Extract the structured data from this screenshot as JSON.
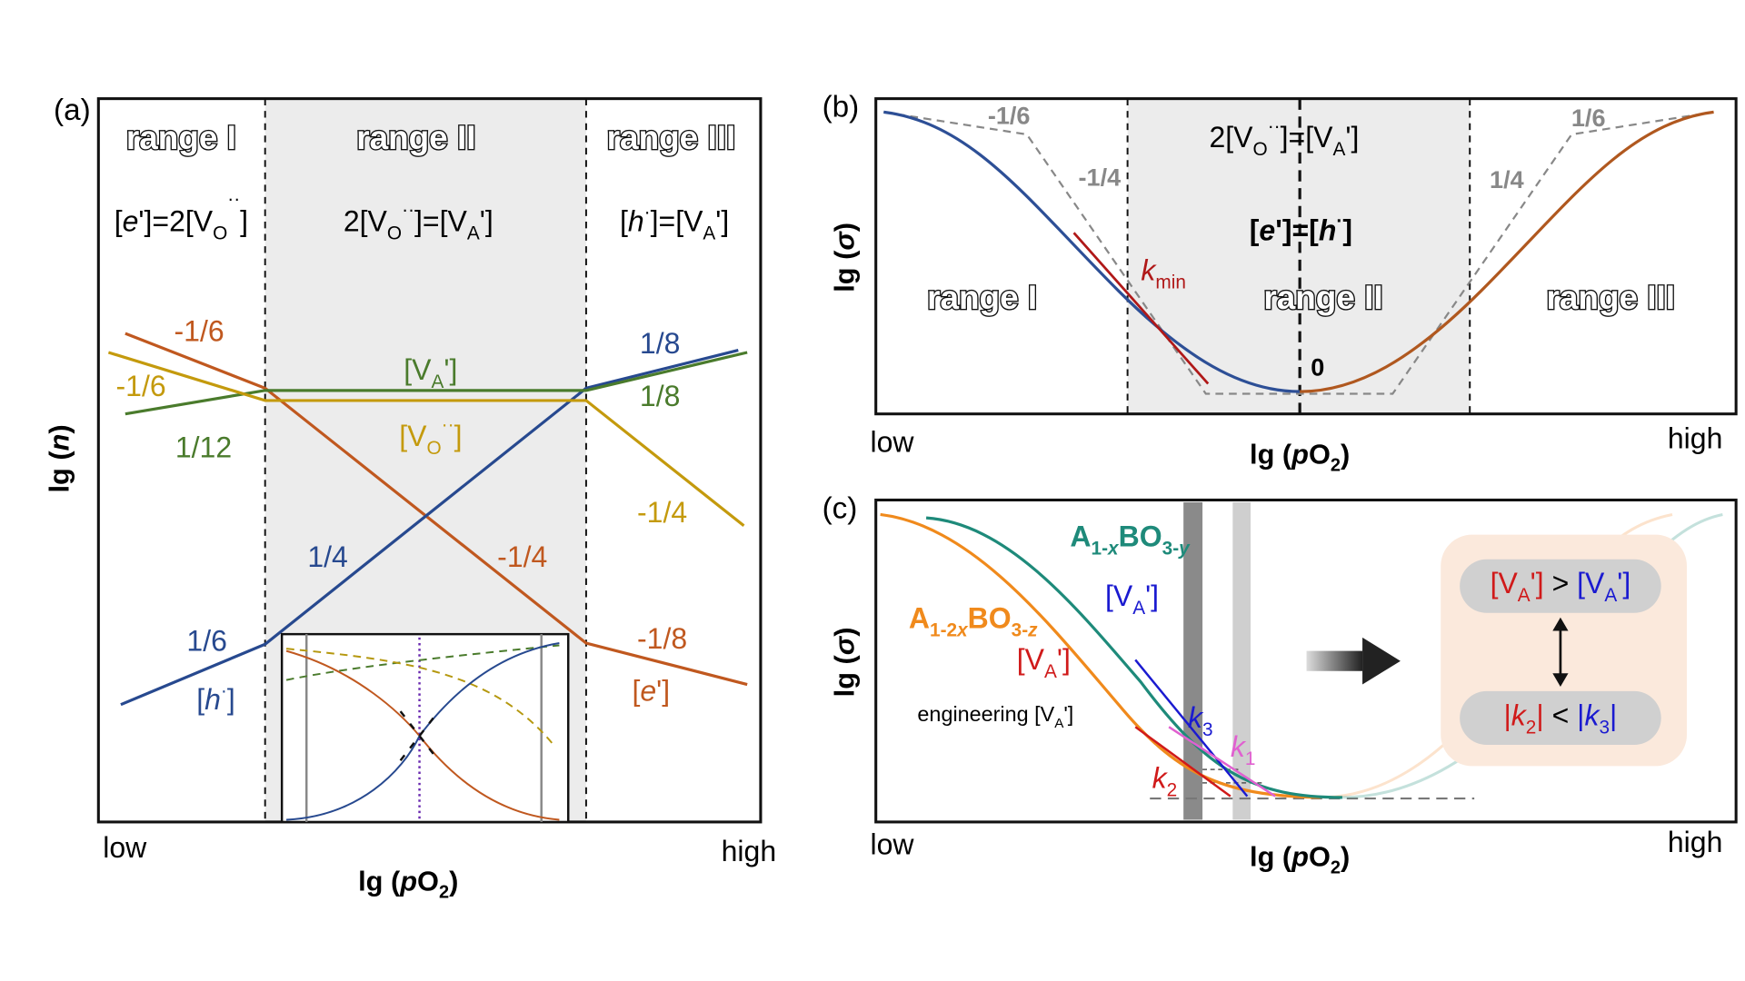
{
  "panel_a": {
    "tag": "(a)",
    "ranges": [
      "range I",
      "range II",
      "range III"
    ],
    "conditions": [
      [
        "[",
        "e",
        "']=2[V",
        "O",
        "··",
        "]"
      ],
      [
        "2[V",
        "O",
        "··",
        "]=[V",
        "A",
        "']"
      ],
      [
        "[",
        "h",
        "·",
        "]=[V",
        "A",
        "']"
      ]
    ],
    "slopes": {
      "e_left": "-1/6",
      "vo_left": "-1/6",
      "va_left": "1/12",
      "h_right": "1/8",
      "va_right": "1/8",
      "vo_right": "-1/4",
      "e_mid": "-1/4",
      "h_mid": "1/4",
      "h_left": "1/6",
      "e_right": "-1/8"
    },
    "species": {
      "va": [
        "[V",
        "A",
        "']"
      ],
      "vo": [
        "[V",
        "O",
        "··",
        "]"
      ],
      "h": [
        "[",
        "h",
        "·",
        "]"
      ],
      "e": [
        "[",
        "e",
        "']"
      ]
    },
    "x_low": "low",
    "x_high": "high",
    "x_label": [
      "lg (",
      "p",
      "O",
      "2",
      ")"
    ],
    "y_label": [
      "lg (",
      "n",
      ")"
    ]
  },
  "panel_b": {
    "tag": "(b)",
    "slopes": {
      "left_outer": "-1/6",
      "left_inner": "-1/4",
      "right_outer": "1/6",
      "right_inner": "1/4",
      "min": "0"
    },
    "condition_1": [
      "2[V",
      "O",
      "··",
      "]=[V",
      "A",
      "']"
    ],
    "condition_2": [
      "[",
      "e",
      "']=[",
      "h",
      "·",
      "]"
    ],
    "k_min": [
      "k",
      "min"
    ],
    "ranges": [
      "range I",
      "range II",
      "range III"
    ],
    "x_low": "low",
    "x_high": "high",
    "x_label": [
      "lg (",
      "p",
      "O",
      "2",
      ")"
    ],
    "y_label": [
      "lg (",
      "σ",
      ")"
    ]
  },
  "panel_c": {
    "tag": "(c)",
    "material_1": [
      "A",
      "1-",
      "x",
      "BO",
      "3-",
      "y"
    ],
    "material_2": [
      "A",
      "1-2",
      "x",
      "BO",
      "3-",
      "z"
    ],
    "va_1": [
      "[V",
      "A",
      "']"
    ],
    "va_2": [
      "[V",
      "A",
      "']"
    ],
    "engineering": [
      "engineering [V",
      "A",
      "']"
    ],
    "k3": [
      "k",
      "3"
    ],
    "k1": [
      "k",
      "1"
    ],
    "k2": [
      "k",
      "2"
    ],
    "comparison_1": [
      "[V",
      "A",
      "']",
      " > ",
      "[V",
      "A",
      "']"
    ],
    "comparison_2": [
      "|",
      "k",
      "2",
      "|",
      " < ",
      "|",
      "k",
      "3",
      "|"
    ],
    "x_low": "low",
    "x_high": "high",
    "x_label": [
      "lg (",
      "p",
      "O",
      "2",
      ")"
    ],
    "y_label": [
      "lg (",
      "σ",
      ")"
    ]
  }
}
